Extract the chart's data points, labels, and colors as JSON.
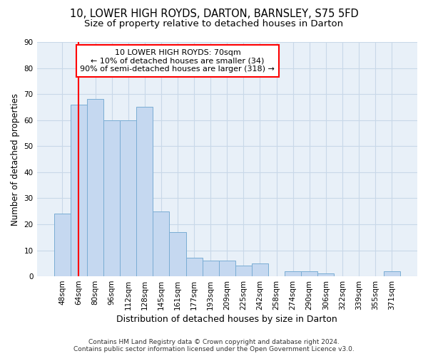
{
  "title1": "10, LOWER HIGH ROYDS, DARTON, BARNSLEY, S75 5FD",
  "title2": "Size of property relative to detached houses in Darton",
  "xlabel": "Distribution of detached houses by size in Darton",
  "ylabel": "Number of detached properties",
  "categories": [
    "48sqm",
    "64sqm",
    "80sqm",
    "96sqm",
    "112sqm",
    "128sqm",
    "145sqm",
    "161sqm",
    "177sqm",
    "193sqm",
    "209sqm",
    "225sqm",
    "242sqm",
    "258sqm",
    "274sqm",
    "290sqm",
    "306sqm",
    "322sqm",
    "339sqm",
    "355sqm",
    "371sqm"
  ],
  "values": [
    24,
    66,
    68,
    60,
    60,
    65,
    25,
    17,
    7,
    6,
    6,
    4,
    5,
    0,
    2,
    2,
    1,
    0,
    0,
    0,
    2
  ],
  "bar_color": "#c5d8f0",
  "bar_edge_color": "#7aadd4",
  "grid_color": "#c8d8e8",
  "background_color": "#e8f0f8",
  "vline_color": "red",
  "vline_position": 1.5,
  "annotation_text": "10 LOWER HIGH ROYDS: 70sqm\n← 10% of detached houses are smaller (34)\n90% of semi-detached houses are larger (318) →",
  "annotation_box_color": "white",
  "annotation_box_edge": "red",
  "ylim": [
    0,
    90
  ],
  "yticks": [
    0,
    10,
    20,
    30,
    40,
    50,
    60,
    70,
    80,
    90
  ],
  "footer": "Contains HM Land Registry data © Crown copyright and database right 2024.\nContains public sector information licensed under the Open Government Licence v3.0.",
  "title1_fontsize": 10.5,
  "title2_fontsize": 9.5,
  "xlabel_fontsize": 9,
  "ylabel_fontsize": 8.5,
  "tick_fontsize": 7.5,
  "annotation_fontsize": 8,
  "footer_fontsize": 6.5
}
